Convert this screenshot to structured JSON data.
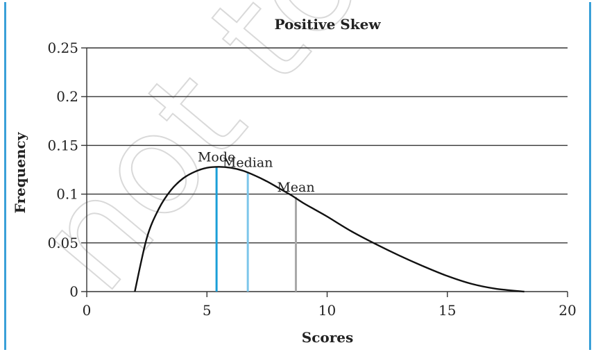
{
  "chart_data": {
    "type": "line",
    "title": "Positive Skew",
    "xlabel": "Scores",
    "ylabel": "Frequency",
    "xlim": [
      0,
      20
    ],
    "ylim": [
      0,
      0.25
    ],
    "x_ticks": [
      "0",
      "5",
      "10",
      "15",
      "20"
    ],
    "y_ticks": [
      "0",
      "0.05",
      "0.1",
      "0.15",
      "0.2",
      "0.25"
    ],
    "grid": "horizontal",
    "series": [
      {
        "x": [
          2.0,
          2.5,
          3.0,
          3.5,
          4.0,
          4.5,
          5.0,
          5.5,
          6.0,
          6.5,
          7.0,
          7.5,
          8.0,
          8.5,
          9.0,
          9.5,
          10.0,
          11.0,
          12.0,
          13.0,
          14.0,
          15.0,
          16.0,
          17.0,
          18.2
        ],
        "values": [
          0.0,
          0.055,
          0.085,
          0.104,
          0.116,
          0.123,
          0.127,
          0.128,
          0.127,
          0.124,
          0.119,
          0.113,
          0.106,
          0.099,
          0.091,
          0.084,
          0.077,
          0.062,
          0.049,
          0.037,
          0.026,
          0.016,
          0.008,
          0.003,
          0.0
        ]
      }
    ],
    "annotations": [
      {
        "label": "Mode",
        "x": 5.4,
        "y": 0.128,
        "color": "#1a9fd8"
      },
      {
        "label": "Median",
        "x": 6.7,
        "y": 0.122,
        "color": "#7cc6ea"
      },
      {
        "label": "Mean",
        "x": 8.7,
        "y": 0.097,
        "color": "#a8a8a8"
      }
    ],
    "watermark": "not to be"
  }
}
